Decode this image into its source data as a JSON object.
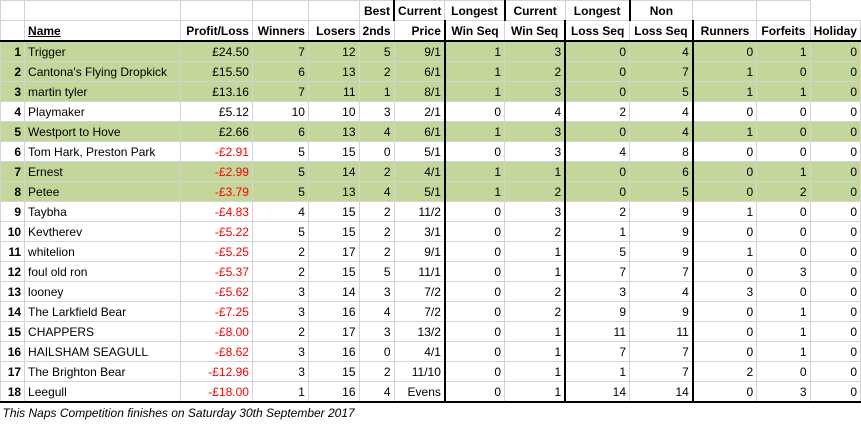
{
  "headers": {
    "row1": {
      "best": "Best",
      "current_win": "Current",
      "longest_win": "Longest",
      "current_loss": "Current",
      "longest_loss": "Longest",
      "non": "Non"
    },
    "row2": {
      "name": "Name",
      "profit": "Profit/Loss",
      "winners": "Winners",
      "losers": "Losers",
      "seconds": "2nds",
      "price": "Price",
      "current_win": "Win Seq",
      "longest_win": "Win Seq",
      "current_loss": "Loss Seq",
      "longest_loss": "Loss Seq",
      "non": "Runners",
      "forfeits": "Forfeits",
      "holiday": "Holiday"
    }
  },
  "rows": [
    {
      "rank": "1",
      "name": "Trigger",
      "profit": "£24.50",
      "winners": "7",
      "losers": "12",
      "seconds": "5",
      "price": "9/1",
      "cws": "1",
      "lws": "3",
      "cls": "0",
      "lls": "4",
      "nr": "0",
      "forfeits": "1",
      "holiday": "0",
      "highlight": true,
      "negative": false
    },
    {
      "rank": "2",
      "name": "Cantona's Flying Dropkick",
      "profit": "£15.50",
      "winners": "6",
      "losers": "13",
      "seconds": "2",
      "price": "6/1",
      "cws": "1",
      "lws": "2",
      "cls": "0",
      "lls": "7",
      "nr": "1",
      "forfeits": "0",
      "holiday": "0",
      "highlight": true,
      "negative": false
    },
    {
      "rank": "3",
      "name": "martin tyler",
      "profit": "£13.16",
      "winners": "7",
      "losers": "11",
      "seconds": "1",
      "price": "8/1",
      "cws": "1",
      "lws": "3",
      "cls": "0",
      "lls": "5",
      "nr": "1",
      "forfeits": "1",
      "holiday": "0",
      "highlight": true,
      "negative": false
    },
    {
      "rank": "4",
      "name": "Playmaker",
      "profit": "£5.12",
      "winners": "10",
      "losers": "10",
      "seconds": "3",
      "price": "2/1",
      "cws": "0",
      "lws": "4",
      "cls": "2",
      "lls": "4",
      "nr": "0",
      "forfeits": "0",
      "holiday": "0",
      "highlight": false,
      "negative": false
    },
    {
      "rank": "5",
      "name": "Westport to Hove",
      "profit": "£2.66",
      "winners": "6",
      "losers": "13",
      "seconds": "4",
      "price": "6/1",
      "cws": "1",
      "lws": "3",
      "cls": "0",
      "lls": "4",
      "nr": "1",
      "forfeits": "0",
      "holiday": "0",
      "highlight": true,
      "negative": false
    },
    {
      "rank": "6",
      "name": "Tom Hark, Preston Park",
      "profit": "-£2.91",
      "winners": "5",
      "losers": "15",
      "seconds": "0",
      "price": "5/1",
      "cws": "0",
      "lws": "3",
      "cls": "4",
      "lls": "8",
      "nr": "0",
      "forfeits": "0",
      "holiday": "0",
      "highlight": false,
      "negative": true
    },
    {
      "rank": "7",
      "name": "Ernest",
      "profit": "-£2.99",
      "winners": "5",
      "losers": "14",
      "seconds": "2",
      "price": "4/1",
      "cws": "1",
      "lws": "1",
      "cls": "0",
      "lls": "6",
      "nr": "0",
      "forfeits": "1",
      "holiday": "0",
      "highlight": true,
      "negative": true
    },
    {
      "rank": "8",
      "name": "Petee",
      "profit": "-£3.79",
      "winners": "5",
      "losers": "13",
      "seconds": "4",
      "price": "5/1",
      "cws": "1",
      "lws": "2",
      "cls": "0",
      "lls": "5",
      "nr": "0",
      "forfeits": "2",
      "holiday": "0",
      "highlight": true,
      "negative": true
    },
    {
      "rank": "9",
      "name": "Taybha",
      "profit": "-£4.83",
      "winners": "4",
      "losers": "15",
      "seconds": "2",
      "price": "11/2",
      "cws": "0",
      "lws": "3",
      "cls": "2",
      "lls": "9",
      "nr": "1",
      "forfeits": "0",
      "holiday": "0",
      "highlight": false,
      "negative": true
    },
    {
      "rank": "10",
      "name": "Kevtherev",
      "profit": "-£5.22",
      "winners": "5",
      "losers": "15",
      "seconds": "2",
      "price": "3/1",
      "cws": "0",
      "lws": "2",
      "cls": "1",
      "lls": "9",
      "nr": "0",
      "forfeits": "0",
      "holiday": "0",
      "highlight": false,
      "negative": true
    },
    {
      "rank": "11",
      "name": "whitelion",
      "profit": "-£5.25",
      "winners": "2",
      "losers": "17",
      "seconds": "2",
      "price": "9/1",
      "cws": "0",
      "lws": "1",
      "cls": "5",
      "lls": "9",
      "nr": "1",
      "forfeits": "0",
      "holiday": "0",
      "highlight": false,
      "negative": true
    },
    {
      "rank": "12",
      "name": "foul old ron",
      "profit": "-£5.37",
      "winners": "2",
      "losers": "15",
      "seconds": "5",
      "price": "11/1",
      "cws": "0",
      "lws": "1",
      "cls": "7",
      "lls": "7",
      "nr": "0",
      "forfeits": "3",
      "holiday": "0",
      "highlight": false,
      "negative": true
    },
    {
      "rank": "13",
      "name": "looney",
      "profit": "-£5.62",
      "winners": "3",
      "losers": "14",
      "seconds": "3",
      "price": "7/2",
      "cws": "0",
      "lws": "2",
      "cls": "3",
      "lls": "4",
      "nr": "3",
      "forfeits": "0",
      "holiday": "0",
      "highlight": false,
      "negative": true
    },
    {
      "rank": "14",
      "name": "The Larkfield Bear",
      "profit": "-£7.25",
      "winners": "3",
      "losers": "16",
      "seconds": "4",
      "price": "7/2",
      "cws": "0",
      "lws": "2",
      "cls": "9",
      "lls": "9",
      "nr": "0",
      "forfeits": "1",
      "holiday": "0",
      "highlight": false,
      "negative": true
    },
    {
      "rank": "15",
      "name": "CHAPPERS",
      "profit": "-£8.00",
      "winners": "2",
      "losers": "17",
      "seconds": "3",
      "price": "13/2",
      "cws": "0",
      "lws": "1",
      "cls": "11",
      "lls": "11",
      "nr": "0",
      "forfeits": "1",
      "holiday": "0",
      "highlight": false,
      "negative": true
    },
    {
      "rank": "16",
      "name": "HAILSHAM SEAGULL",
      "profit": "-£8.62",
      "winners": "3",
      "losers": "16",
      "seconds": "0",
      "price": "4/1",
      "cws": "0",
      "lws": "1",
      "cls": "7",
      "lls": "7",
      "nr": "0",
      "forfeits": "1",
      "holiday": "0",
      "highlight": false,
      "negative": true
    },
    {
      "rank": "17",
      "name": "The Brighton Bear",
      "profit": "-£12.96",
      "winners": "3",
      "losers": "15",
      "seconds": "2",
      "price": "11/10",
      "cws": "0",
      "lws": "1",
      "cls": "1",
      "lls": "7",
      "nr": "2",
      "forfeits": "0",
      "holiday": "0",
      "highlight": false,
      "negative": true
    },
    {
      "rank": "18",
      "name": "Leegull",
      "profit": "-£18.00",
      "winners": "1",
      "losers": "16",
      "seconds": "4",
      "price": "Evens",
      "cws": "0",
      "lws": "1",
      "cls": "14",
      "lls": "14",
      "nr": "0",
      "forfeits": "3",
      "holiday": "0",
      "highlight": false,
      "negative": true
    }
  ],
  "footer": "This Naps Competition finishes on Saturday 30th September 2017",
  "colors": {
    "highlight": "#c4d79b",
    "negative": "#ff0000"
  }
}
